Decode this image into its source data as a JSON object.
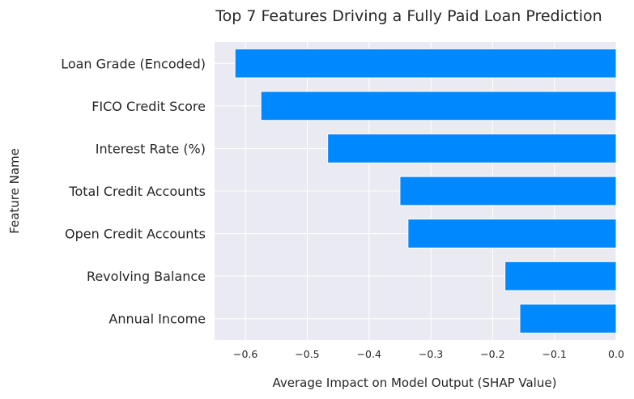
{
  "chart_data": {
    "type": "bar",
    "orientation": "horizontal",
    "title": "Top 7 Features Driving a Fully Paid Loan Prediction",
    "xlabel": "Average Impact on Model Output (SHAP Value)",
    "ylabel": "Feature Name",
    "categories": [
      "Loan Grade (Encoded)",
      "FICO Credit Score",
      "Interest Rate (%)",
      "Total Credit Accounts",
      "Open Credit Accounts",
      "Revolving Balance",
      "Annual Income"
    ],
    "values": [
      -0.617,
      -0.575,
      -0.467,
      -0.35,
      -0.337,
      -0.18,
      -0.156
    ],
    "xlim": [
      -0.65,
      0.0
    ],
    "xticks": [
      -0.6,
      -0.5,
      -0.4,
      -0.3,
      -0.2,
      -0.1,
      0.0
    ],
    "xtick_labels": [
      "−0.6",
      "−0.5",
      "−0.4",
      "−0.3",
      "−0.2",
      "−0.1",
      "0.0"
    ],
    "grid": true,
    "bar_color": "#0088ff",
    "background_color": "#eaeaf2"
  }
}
